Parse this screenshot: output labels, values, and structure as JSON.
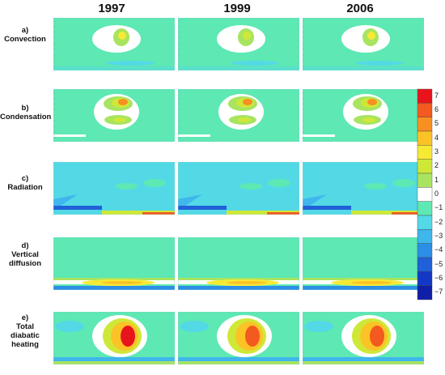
{
  "columns": [
    "1997",
    "1999",
    "2006"
  ],
  "rows": [
    {
      "id": "convection",
      "label_lines": [
        "a)",
        "Convection"
      ],
      "peak": 2.5
    },
    {
      "id": "condensation",
      "label_lines": [
        "b)",
        "Condensation"
      ],
      "peak": 5.0
    },
    {
      "id": "radiation",
      "label_lines": [
        "c)",
        "Radiation"
      ],
      "peak": -1.5
    },
    {
      "id": "vertical-diffusion",
      "label_lines": [
        "d)",
        "Vertical",
        "diffusion"
      ],
      "peak": 4.0
    },
    {
      "id": "total-diabatic-heating",
      "label_lines": [
        "e)",
        "Total",
        "diabatic",
        "heating"
      ],
      "peak": 6.5
    }
  ],
  "colorbar": {
    "ticks": [
      "7",
      "6",
      "5",
      "4",
      "3",
      "2",
      "1",
      "0",
      "−1",
      "−2",
      "−3",
      "−4",
      "−5",
      "−6",
      "−7"
    ],
    "colors": [
      "#e8141c",
      "#f25a1f",
      "#f88f21",
      "#fbc326",
      "#f7ea35",
      "#cfe838",
      "#a8e460",
      "#ffffff",
      "#5ee8b3",
      "#53d9e6",
      "#3fb6ec",
      "#2c8ee6",
      "#2060d9",
      "#1438c6",
      "#101fa8"
    ]
  },
  "chart_data": {
    "type": "heatmap",
    "rows": [
      "Convection",
      "Condensation",
      "Radiation",
      "Vertical diffusion",
      "Total diabatic heating"
    ],
    "columns": [
      "1997",
      "1999",
      "2006"
    ],
    "zlim": [
      -7,
      7
    ],
    "colorbar_ticks": [
      7,
      6,
      5,
      4,
      3,
      2,
      1,
      0,
      -1,
      -2,
      -3,
      -4,
      -5,
      -6,
      -7
    ],
    "approx_peak_values": [
      [
        2.5,
        2.0,
        2.5
      ],
      [
        5.0,
        4.5,
        4.5
      ],
      [
        -1.5,
        -1.5,
        -1.5
      ],
      [
        4.0,
        4.0,
        4.0
      ],
      [
        6.5,
        6.0,
        6.0
      ]
    ]
  }
}
